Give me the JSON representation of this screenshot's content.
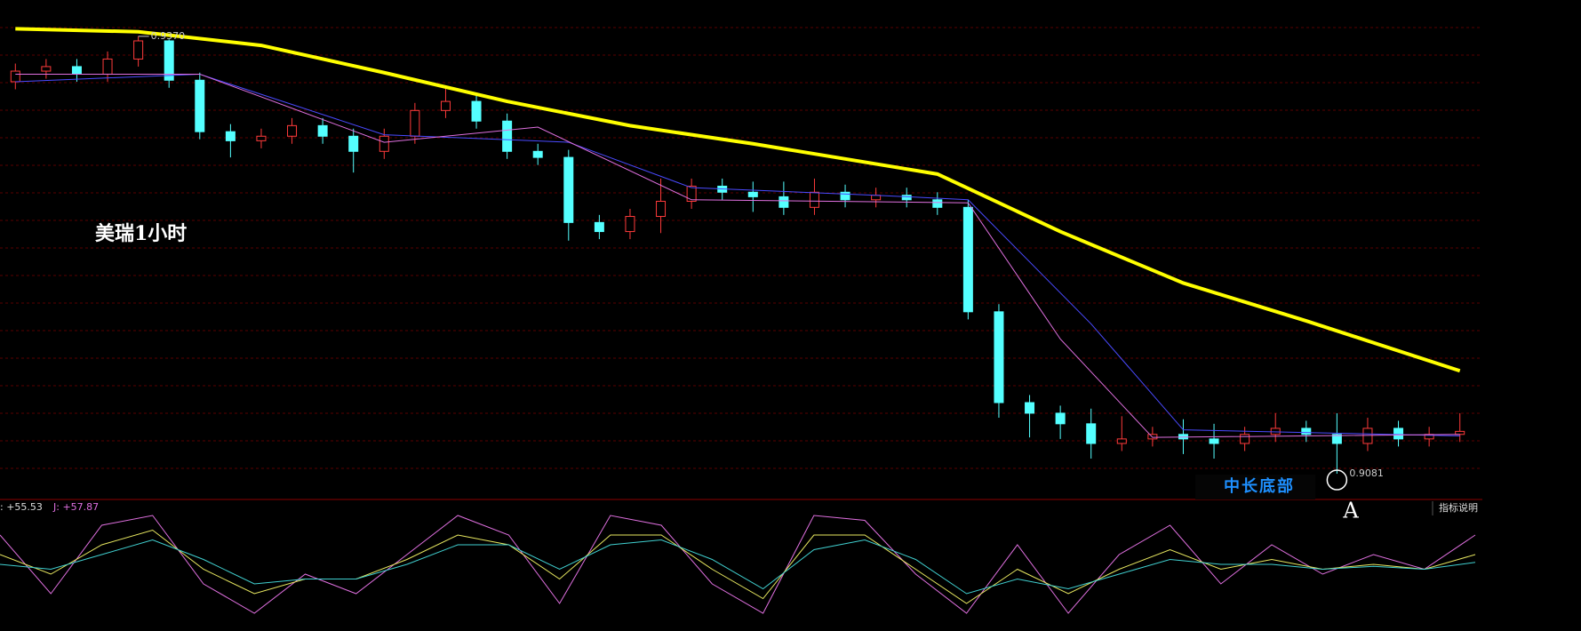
{
  "chart_data": {
    "type": "candlestick",
    "title": "美瑞1小时",
    "annotation": "中长底部",
    "marker": "A",
    "high_label": "0.9370",
    "low_label": "0.9081",
    "indicator_button": "指标说明",
    "indicator_labels": [
      ": +55.53",
      "J: +57.87"
    ],
    "ylim": [
      0.9064,
      0.9394
    ],
    "up_color": "#ff3b3b",
    "down_color": "#54ffff",
    "grid": true,
    "open": [
      0.934,
      0.9347,
      0.935,
      0.9345,
      0.9355,
      0.9367,
      0.9341,
      0.9307,
      0.9301,
      0.9304,
      0.9311,
      0.9304,
      0.9294,
      0.9304,
      0.9321,
      0.9327,
      0.9314,
      0.9294,
      0.929,
      0.9247,
      0.9241,
      0.9251,
      0.9261,
      0.9271,
      0.9267,
      0.9264,
      0.9257,
      0.9267,
      0.9262,
      0.9265,
      0.9262,
      0.9257,
      0.9188,
      0.9128,
      0.9121,
      0.9114,
      0.9101,
      0.9104,
      0.9107,
      0.9104,
      0.9101,
      0.9107,
      0.9111,
      0.9107,
      0.9101,
      0.9111,
      0.9104,
      0.9107
    ],
    "high": [
      0.9352,
      0.9355,
      0.9355,
      0.936,
      0.937,
      0.9368,
      0.9346,
      0.9312,
      0.9309,
      0.9316,
      0.9316,
      0.9309,
      0.9309,
      0.9326,
      0.9336,
      0.9332,
      0.9319,
      0.9299,
      0.9295,
      0.9252,
      0.9256,
      0.9276,
      0.9276,
      0.9276,
      0.9274,
      0.9274,
      0.9276,
      0.9272,
      0.927,
      0.927,
      0.9267,
      0.9262,
      0.9193,
      0.9133,
      0.9126,
      0.9124,
      0.9119,
      0.9112,
      0.9117,
      0.9114,
      0.9112,
      0.9121,
      0.9116,
      0.9121,
      0.9118,
      0.9116,
      0.9112,
      0.9121
    ],
    "low": [
      0.9335,
      0.9342,
      0.934,
      0.934,
      0.935,
      0.9336,
      0.9302,
      0.929,
      0.9296,
      0.9299,
      0.9299,
      0.928,
      0.9289,
      0.9299,
      0.9316,
      0.9309,
      0.9289,
      0.9285,
      0.9235,
      0.9236,
      0.9236,
      0.924,
      0.9256,
      0.9262,
      0.9254,
      0.9252,
      0.9252,
      0.9257,
      0.9257,
      0.9257,
      0.9252,
      0.9183,
      0.9118,
      0.9105,
      0.9104,
      0.9091,
      0.9096,
      0.9099,
      0.9094,
      0.9091,
      0.9096,
      0.9102,
      0.9102,
      0.9081,
      0.9096,
      0.9099,
      0.9099,
      0.9102
    ],
    "close": [
      0.9347,
      0.935,
      0.9345,
      0.9355,
      0.9367,
      0.9341,
      0.9307,
      0.9301,
      0.9304,
      0.9311,
      0.9304,
      0.9294,
      0.9304,
      0.9321,
      0.9327,
      0.9314,
      0.9294,
      0.929,
      0.9247,
      0.9241,
      0.9251,
      0.9261,
      0.9271,
      0.9267,
      0.9264,
      0.9257,
      0.9267,
      0.9262,
      0.9265,
      0.9262,
      0.9257,
      0.9188,
      0.9128,
      0.9121,
      0.9114,
      0.9101,
      0.9104,
      0.9107,
      0.9104,
      0.9101,
      0.9107,
      0.9111,
      0.9107,
      0.9101,
      0.9111,
      0.9104,
      0.9107,
      0.9109
    ],
    "lines": [
      {
        "color": "#ffff00",
        "width": 4,
        "x": [
          0,
          4,
          8,
          12,
          16,
          20,
          24,
          30,
          34,
          38,
          42,
          47
        ],
        "values": [
          0.9375,
          0.9373,
          0.9364,
          0.9346,
          0.9327,
          0.9311,
          0.9299,
          0.9279,
          0.9241,
          0.9207,
          0.9182,
          0.9149
        ]
      },
      {
        "color": "#4a4aff",
        "width": 1,
        "x": [
          0,
          6,
          12,
          18,
          22,
          28,
          31,
          35,
          38,
          47
        ],
        "values": [
          0.934,
          0.9345,
          0.9305,
          0.93,
          0.927,
          0.9265,
          0.9262,
          0.918,
          0.911,
          0.9106
        ]
      },
      {
        "color": "#e070e0",
        "width": 1,
        "x": [
          0,
          6,
          12,
          17,
          22,
          31,
          34,
          37,
          47
        ],
        "values": [
          0.9345,
          0.9345,
          0.93,
          0.931,
          0.9262,
          0.926,
          0.917,
          0.9105,
          0.9107
        ]
      }
    ],
    "kdj": {
      "ylim": [
        0,
        100
      ],
      "series": [
        {
          "color": "#e070e0",
          "values": [
            80,
            20,
            90,
            100,
            30,
            0,
            40,
            20,
            60,
            100,
            80,
            10,
            100,
            90,
            30,
            0,
            100,
            95,
            40,
            0,
            70,
            0,
            60,
            90,
            30,
            70,
            40,
            60,
            45,
            80
          ]
        },
        {
          "color": "#e8e860",
          "values": [
            60,
            40,
            70,
            85,
            45,
            20,
            35,
            35,
            55,
            80,
            70,
            35,
            80,
            80,
            45,
            15,
            80,
            80,
            45,
            10,
            45,
            20,
            45,
            65,
            45,
            55,
            45,
            50,
            45,
            60
          ]
        },
        {
          "color": "#40d0d0",
          "values": [
            50,
            45,
            60,
            75,
            55,
            30,
            35,
            35,
            50,
            70,
            70,
            45,
            70,
            75,
            55,
            25,
            65,
            75,
            55,
            20,
            35,
            25,
            40,
            55,
            50,
            50,
            45,
            48,
            45,
            52
          ]
        }
      ]
    }
  }
}
